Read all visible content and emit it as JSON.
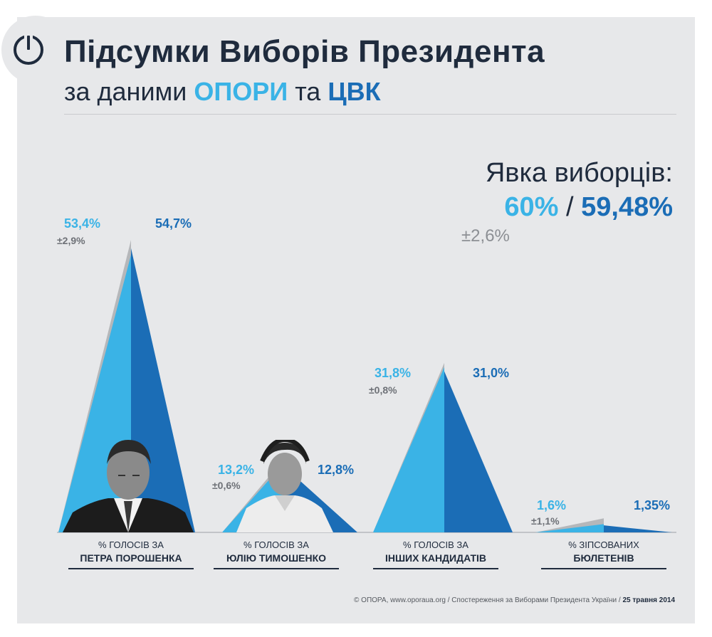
{
  "header": {
    "title": "Підсумки Виборів Президента",
    "subtitle_prefix": "за даними",
    "subtitle_opora": "ОПОРИ",
    "subtitle_and": "та",
    "subtitle_cvk": "ЦВК",
    "logo_icon": "power-button-icon"
  },
  "turnout": {
    "title": "Явка виборців:",
    "opora": "60%",
    "separator": "/",
    "cvk": "59,48%",
    "error": "±2,6%"
  },
  "colors": {
    "opora": "#3ab3e6",
    "cvk": "#1b6db6",
    "error_band": "#b5b7ba",
    "text": "#1f2b3d"
  },
  "chart_data": {
    "type": "bar",
    "categories": [
      "ПЕТРА ПОРОШЕНКА",
      "ЮЛІЮ ТИМОШЕНКО",
      "ІНШИХ КАНДИДАТІВ",
      "БЮЛЕТЕНІВ"
    ],
    "category_prefixes": [
      "% ГОЛОСІВ ЗА",
      "% ГОЛОСІВ ЗА",
      "% ГОЛОСІВ ЗА",
      "% ЗІПСОВАНИХ"
    ],
    "series": [
      {
        "name": "ОПОРИ",
        "values": [
          53.4,
          13.2,
          31.8,
          1.6
        ],
        "labels": [
          "53,4%",
          "13,2%",
          "31,8%",
          "1,6%"
        ],
        "errors": [
          2.9,
          0.6,
          0.8,
          1.1
        ],
        "error_labels": [
          "±2,9%",
          "±0,6%",
          "±0,8%",
          "±1,1%"
        ]
      },
      {
        "name": "ЦВК",
        "values": [
          54.7,
          12.8,
          31.0,
          1.35
        ],
        "labels": [
          "54,7%",
          "12,8%",
          "31,0%",
          "1,35%"
        ]
      }
    ]
  },
  "footer": {
    "credits": "© ОПОРА, www.oporaua.org / Спостереження за Виборами Президента України /",
    "date": "25 травня 2014"
  }
}
